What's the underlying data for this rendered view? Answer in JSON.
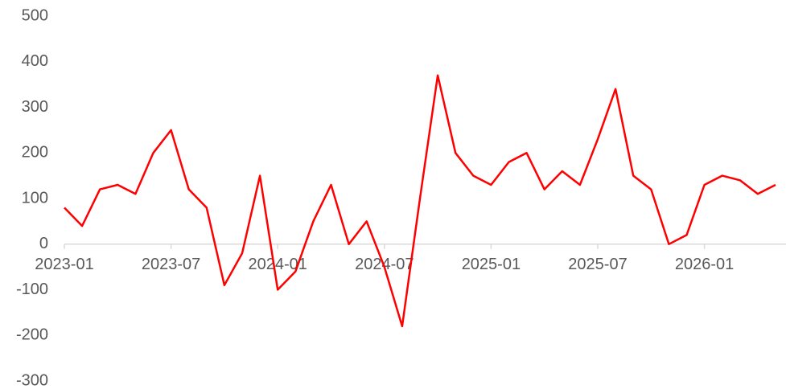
{
  "chart_data": {
    "type": "line",
    "categories": [
      "2023-01",
      null,
      null,
      null,
      null,
      null,
      "2023-07",
      null,
      null,
      null,
      null,
      null,
      "2024-01",
      null,
      null,
      null,
      null,
      null,
      "2024-07",
      null,
      null,
      null,
      null,
      null,
      "2025-01",
      null,
      null,
      null,
      null,
      null,
      "2025-07",
      null,
      null,
      null,
      null,
      null,
      "2026-01",
      null,
      null,
      null,
      null
    ],
    "series": [
      {
        "name": null,
        "color": "#ff0000",
        "values": [
          80,
          40,
          120,
          130,
          110,
          200,
          250,
          120,
          80,
          -90,
          -20,
          150,
          -100,
          -60,
          50,
          130,
          0,
          50,
          -50,
          -180,
          100,
          370,
          200,
          150,
          130,
          180,
          200,
          120,
          160,
          130,
          230,
          340,
          150,
          120,
          0,
          20,
          130,
          150,
          140,
          110,
          130
        ]
      }
    ],
    "ylim": [
      -300,
      500
    ],
    "yticks": [
      -300,
      -200,
      -100,
      0,
      100,
      200,
      300,
      400,
      500
    ]
  }
}
